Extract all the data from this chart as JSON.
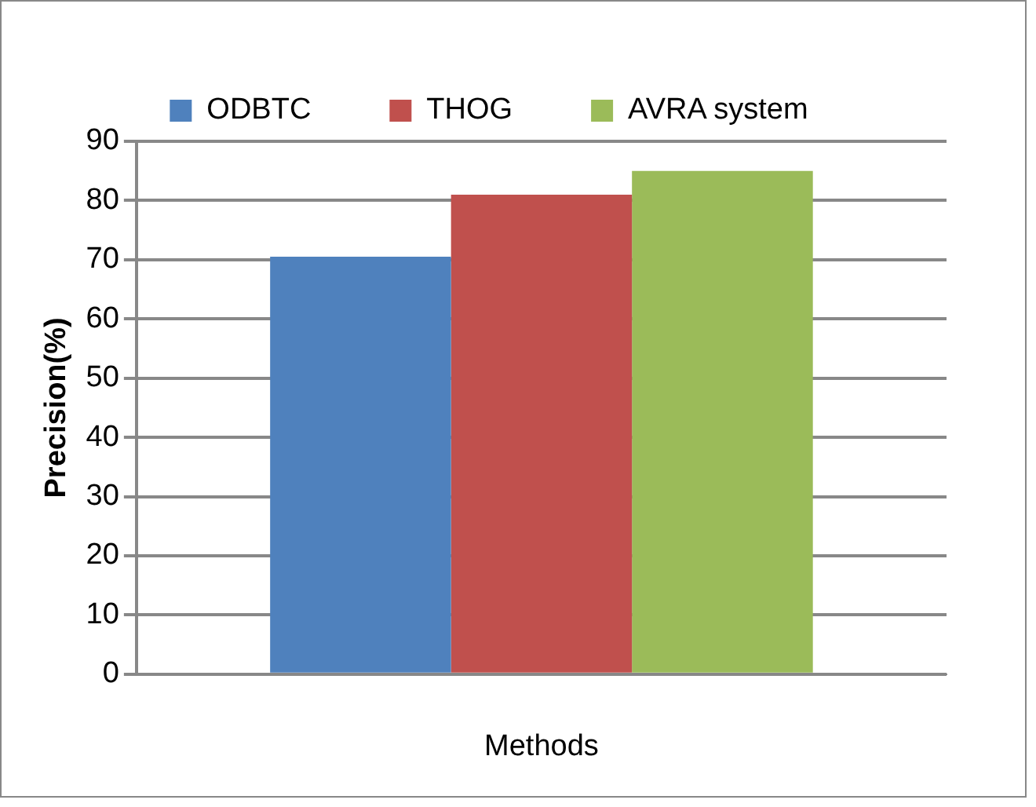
{
  "chart_data": {
    "type": "bar",
    "xlabel": "Methods",
    "ylabel": "Precision(%)",
    "categories": [
      null
    ],
    "series": [
      {
        "name": "ODBTC",
        "color": "#4f81bd",
        "values": [
          70.5
        ]
      },
      {
        "name": "THOG",
        "color": "#c0504d",
        "values": [
          81
        ]
      },
      {
        "name": "AVRA system",
        "color": "#9bbb59",
        "values": [
          85
        ]
      }
    ],
    "ylim": [
      0,
      90
    ],
    "yticks": [
      0,
      10,
      20,
      30,
      40,
      50,
      60,
      70,
      80,
      90
    ],
    "grid": "y",
    "legend": "top"
  }
}
